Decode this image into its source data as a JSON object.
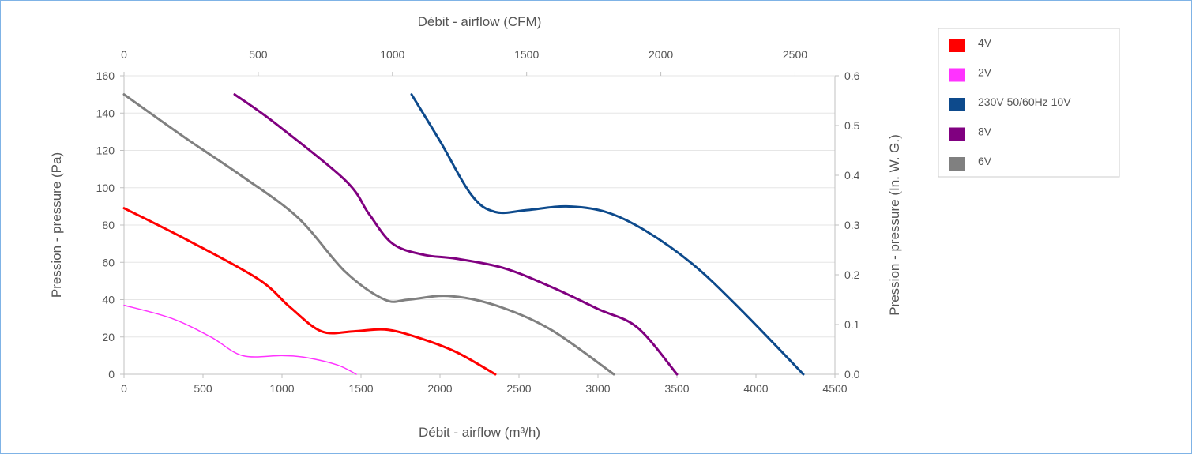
{
  "chart_data": {
    "type": "line",
    "x_bottom": {
      "label": "Débit - airflow (m³/h)",
      "range": [
        0,
        4500
      ],
      "ticks": [
        0,
        500,
        1000,
        1500,
        2000,
        2500,
        3000,
        3500,
        4000,
        4500
      ]
    },
    "x_top": {
      "label": "Débit - airflow (CFM)",
      "range": [
        0,
        2648.7
      ],
      "ticks": [
        0,
        500,
        1000,
        1500,
        2000,
        2500
      ]
    },
    "y_left": {
      "label": "Pression - pressure (Pa)",
      "range": [
        0,
        160
      ],
      "ticks": [
        0,
        20,
        40,
        60,
        80,
        100,
        120,
        140,
        160
      ]
    },
    "y_right": {
      "label": "Pression - pressure (In. W. G.)",
      "range": [
        0,
        0.6
      ],
      "ticks": [
        "0.0",
        "0.1",
        "0.2",
        "0.3",
        "0.4",
        "0.5",
        "0.6"
      ]
    },
    "grid": "horizontal",
    "legend_position": "top-right",
    "series": [
      {
        "name": "4V",
        "color": "#ff0000",
        "points": [
          [
            0,
            89
          ],
          [
            400,
            72
          ],
          [
            850,
            51
          ],
          [
            1050,
            36
          ],
          [
            1250,
            23
          ],
          [
            1450,
            23
          ],
          [
            1650,
            24
          ],
          [
            1850,
            20
          ],
          [
            2100,
            12
          ],
          [
            2350,
            0
          ]
        ]
      },
      {
        "name": "2V",
        "color": "#ff33ff",
        "points": [
          [
            0,
            37
          ],
          [
            300,
            30
          ],
          [
            550,
            20
          ],
          [
            750,
            10
          ],
          [
            1000,
            10
          ],
          [
            1150,
            9
          ],
          [
            1350,
            5
          ],
          [
            1470,
            0
          ]
        ]
      },
      {
        "name": "230V 50/60Hz 10V",
        "color": "#0d4a8c",
        "points": [
          [
            1820,
            150
          ],
          [
            2000,
            125
          ],
          [
            2200,
            96
          ],
          [
            2350,
            87
          ],
          [
            2550,
            88
          ],
          [
            2800,
            90
          ],
          [
            3050,
            87
          ],
          [
            3300,
            77
          ],
          [
            3600,
            59
          ],
          [
            3900,
            35
          ],
          [
            4300,
            0
          ]
        ]
      },
      {
        "name": "8V",
        "color": "#800080",
        "points": [
          [
            700,
            150
          ],
          [
            950,
            135
          ],
          [
            1400,
            104
          ],
          [
            1550,
            86
          ],
          [
            1700,
            70
          ],
          [
            1900,
            64
          ],
          [
            2100,
            62
          ],
          [
            2400,
            57
          ],
          [
            2700,
            47
          ],
          [
            3000,
            35
          ],
          [
            3250,
            25
          ],
          [
            3500,
            0
          ]
        ]
      },
      {
        "name": "6V",
        "color": "#808080",
        "points": [
          [
            0,
            150
          ],
          [
            400,
            126
          ],
          [
            750,
            106
          ],
          [
            1100,
            84
          ],
          [
            1400,
            55
          ],
          [
            1650,
            40
          ],
          [
            1800,
            40
          ],
          [
            2050,
            42
          ],
          [
            2350,
            37
          ],
          [
            2700,
            24
          ],
          [
            3100,
            0
          ]
        ]
      }
    ]
  }
}
